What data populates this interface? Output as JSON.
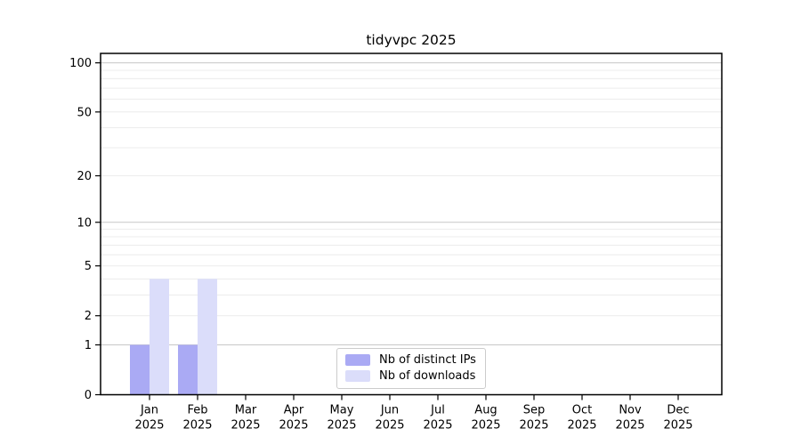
{
  "chart": {
    "colors": {
      "ips": "#aaaaf4",
      "downloads": "#dbddfa",
      "grid_major": "#c7c7c7",
      "grid_minor": "#ececec",
      "spine": "#000000",
      "text": "#000000",
      "legend_border": "#cccccc",
      "background": "#ffffff"
    }
  },
  "chart_data": {
    "type": "bar",
    "title": "tidyvpc 2025",
    "categories": [
      "Jan 2025",
      "Feb 2025",
      "Mar 2025",
      "Apr 2025",
      "May 2025",
      "Jun 2025",
      "Jul 2025",
      "Aug 2025",
      "Sep 2025",
      "Oct 2025",
      "Nov 2025",
      "Dec 2025"
    ],
    "series": [
      {
        "name": "Nb of distinct IPs",
        "values": [
          1,
          1,
          0,
          0,
          0,
          0,
          0,
          0,
          0,
          0,
          0,
          0
        ]
      },
      {
        "name": "Nb of downloads",
        "values": [
          4,
          4,
          0,
          0,
          0,
          0,
          0,
          0,
          0,
          0,
          0,
          0
        ]
      }
    ],
    "xlabel": "",
    "ylabel": "",
    "yscale": "log1p",
    "ylim": [
      0,
      113
    ],
    "yticks": [
      0,
      1,
      2,
      5,
      10,
      20,
      50,
      100
    ],
    "grid": {
      "major": [
        1,
        10,
        100
      ],
      "minor": [
        2,
        3,
        4,
        5,
        6,
        7,
        8,
        9,
        20,
        30,
        40,
        50,
        60,
        70,
        80,
        90
      ]
    },
    "legend_position": "lower center"
  }
}
